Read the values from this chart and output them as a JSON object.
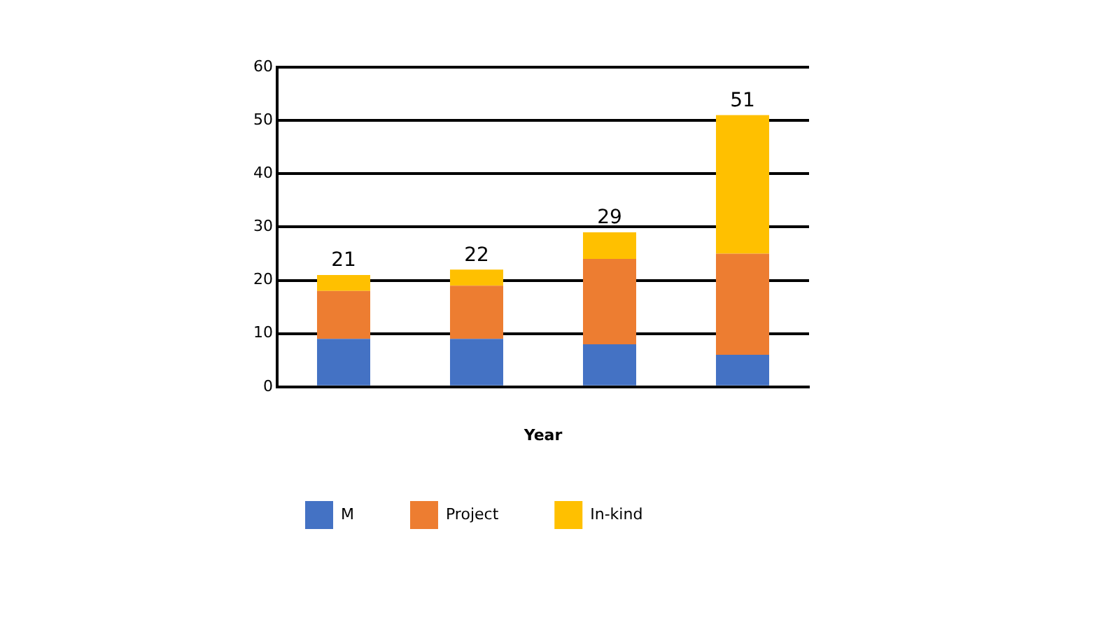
{
  "chart_data": {
    "type": "bar",
    "stacked": true,
    "xlabel": "Year",
    "categories": [
      null,
      null,
      null,
      null
    ],
    "series": [
      {
        "name": "M",
        "color": "#4472c4",
        "values": [
          9,
          9,
          8,
          6
        ]
      },
      {
        "name": "Project",
        "color": "#ed7d31",
        "values": [
          9,
          10,
          16,
          19
        ]
      },
      {
        "name": "In-kind",
        "color": "#ffc000",
        "values": [
          3,
          3,
          5,
          26
        ]
      }
    ],
    "totals": [
      "21",
      "22",
      "29",
      "51"
    ],
    "ylim": [
      0,
      60
    ],
    "yticks": [
      0,
      10,
      20,
      30,
      40,
      50,
      60
    ],
    "grid": "y",
    "legend": "bottom"
  }
}
